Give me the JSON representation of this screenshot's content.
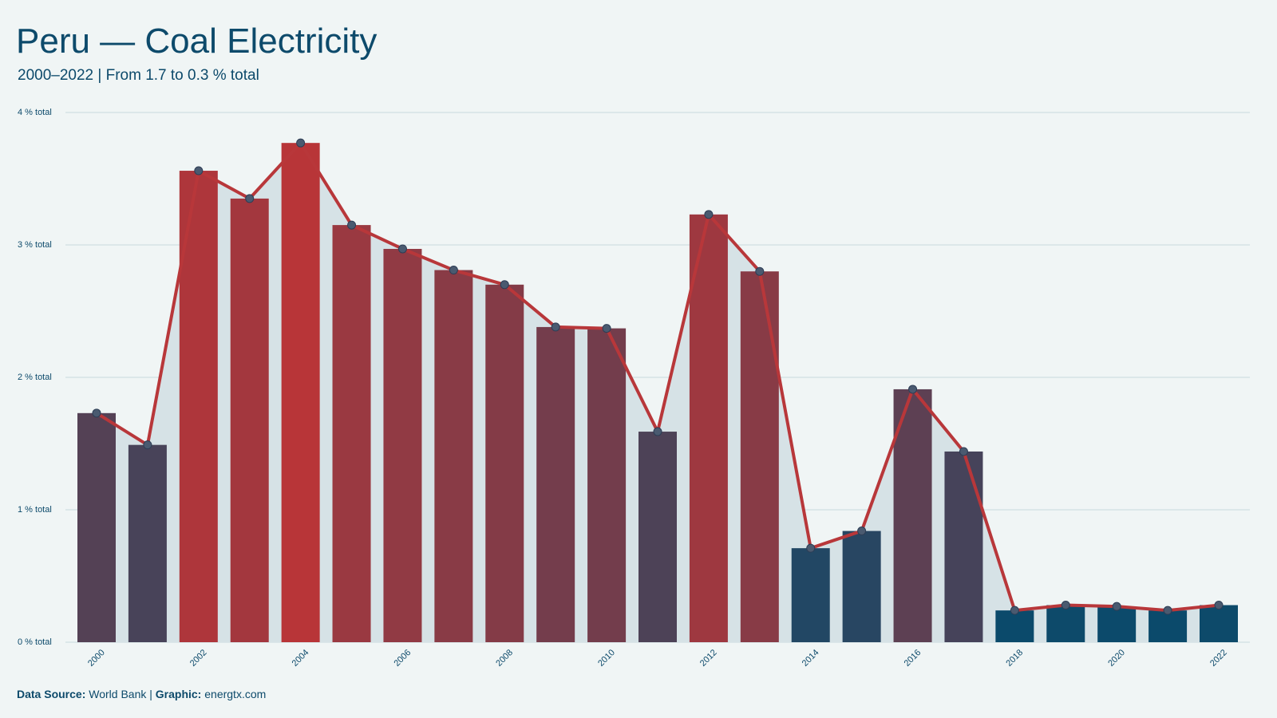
{
  "chart_data": {
    "type": "bar",
    "title": "Peru — Coal Electricity",
    "subtitle": "2000–2022 | From 1.7 to 0.3 % total",
    "categories": [
      "2000",
      null,
      "2002",
      null,
      "2004",
      null,
      "2006",
      null,
      "2008",
      null,
      "2010",
      null,
      "2012",
      null,
      "2014",
      null,
      "2016",
      null,
      "2018",
      null,
      "2020",
      null,
      "2022"
    ],
    "values": [
      1.73,
      1.49,
      3.56,
      3.35,
      3.77,
      3.15,
      2.97,
      2.81,
      2.7,
      2.38,
      2.37,
      1.59,
      3.23,
      2.8,
      0.71,
      0.84,
      1.91,
      1.44,
      0.24,
      0.28,
      0.27,
      0.24,
      0.28
    ],
    "color_low": "#0b4a6b",
    "color_high": "#b83538",
    "line_color": "#b8373a",
    "area_color": "#d6e2e6",
    "ylim": [
      0,
      4
    ],
    "yticks": [
      {
        "value": 0,
        "label": "0 % total"
      },
      {
        "value": 1,
        "label": "1 % total"
      },
      {
        "value": 2,
        "label": "2 % total"
      },
      {
        "value": 3,
        "label": "3 % total"
      },
      {
        "value": 4,
        "label": "4 % total"
      }
    ],
    "grid": true,
    "footer": {
      "source_label": "Data Source:",
      "source": "World Bank",
      "separator": "|",
      "credit_label": "Graphic:",
      "credit": "energtx.com"
    }
  }
}
